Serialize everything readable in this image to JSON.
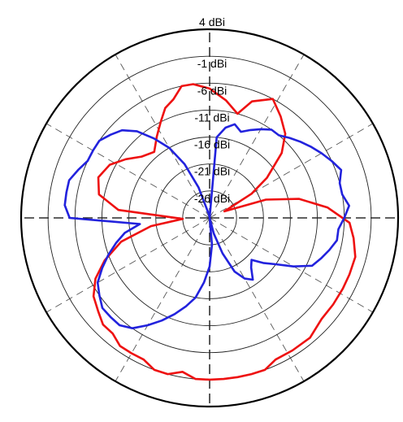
{
  "chart_data": {
    "type": "line",
    "subtype": "polar",
    "title": "",
    "radial_axis": {
      "unit": "dBi",
      "range": [
        -31,
        4
      ],
      "tick_values": [
        4,
        -1,
        -6,
        -11,
        -16,
        -21,
        -26
      ],
      "tick_labels": [
        "4 dBi",
        "-1 dBi",
        "-6 dBi",
        "-11 dBi",
        "-16 dBi",
        "-21 dBi",
        "-26 dBi"
      ]
    },
    "angular_axis": {
      "spoke_step_deg": 30,
      "zero_direction": "up",
      "direction": "clockwise"
    },
    "grid": true,
    "legend": "none",
    "series": [
      {
        "color": "#ee1111",
        "angle_deg": [
          0,
          8,
          15,
          20,
          28,
          35,
          42,
          48,
          55,
          60,
          66,
          72,
          78,
          85,
          92,
          98,
          105,
          112,
          118,
          125,
          132,
          140,
          148,
          155,
          160,
          165,
          170,
          175,
          180,
          185,
          190,
          195,
          200,
          205,
          210,
          215,
          220,
          225,
          230,
          236,
          242,
          248,
          255,
          262,
          268,
          275,
          282,
          290,
          298,
          305,
          312,
          320,
          327,
          333,
          338,
          343,
          348,
          353
        ],
        "values": [
          -7,
          -9,
          -11,
          -8,
          -6,
          -8,
          -10,
          -13,
          -18,
          -22,
          -28,
          -20,
          -14,
          -9,
          -5,
          -4,
          -3,
          -3,
          -3,
          -3,
          -3,
          -2,
          -2,
          -2,
          -1,
          -1,
          -1,
          -1,
          -1,
          -1,
          -2,
          -1,
          -1,
          -2,
          -2,
          -2,
          -3,
          -3,
          -4,
          -5,
          -7,
          -10,
          -14,
          -20,
          -26,
          -14,
          -10,
          -9,
          -10,
          -12,
          -14,
          -15,
          -13,
          -11,
          -9,
          -8,
          -6,
          -6
        ]
      },
      {
        "color": "#2222dd",
        "angle_deg": [
          0,
          5,
          10,
          15,
          20,
          25,
          30,
          35,
          40,
          45,
          50,
          55,
          60,
          65,
          70,
          75,
          80,
          85,
          90,
          95,
          100,
          105,
          110,
          115,
          120,
          125,
          130,
          135,
          140,
          145,
          150,
          155,
          160,
          165,
          170,
          175,
          180,
          185,
          190,
          195,
          200,
          205,
          210,
          215,
          220,
          225,
          230,
          235,
          240,
          245,
          250,
          255,
          260,
          265,
          270,
          275,
          280,
          285,
          290,
          295,
          300,
          305,
          310,
          315,
          320,
          325,
          330,
          335,
          340,
          345,
          350,
          355
        ],
        "values": [
          -31,
          -16,
          -14,
          -13,
          -14,
          -13,
          -12,
          -11,
          -11,
          -10,
          -9,
          -8,
          -7,
          -6,
          -5,
          -6,
          -6,
          -5,
          -6,
          -7,
          -7,
          -8,
          -9,
          -10,
          -13,
          -16,
          -18,
          -20,
          -19,
          -17,
          -18,
          -20,
          -24,
          -28,
          -31,
          -26,
          -22,
          -19,
          -16,
          -14,
          -12,
          -10,
          -8,
          -6,
          -5,
          -5,
          -5,
          -6,
          -7,
          -9,
          -11,
          -13,
          -15,
          -18,
          -5,
          -4,
          -4,
          -4,
          -5,
          -6,
          -6,
          -6,
          -7,
          -8,
          -10,
          -13,
          -16,
          -20,
          -25,
          -30,
          -30,
          -31
        ]
      }
    ]
  }
}
